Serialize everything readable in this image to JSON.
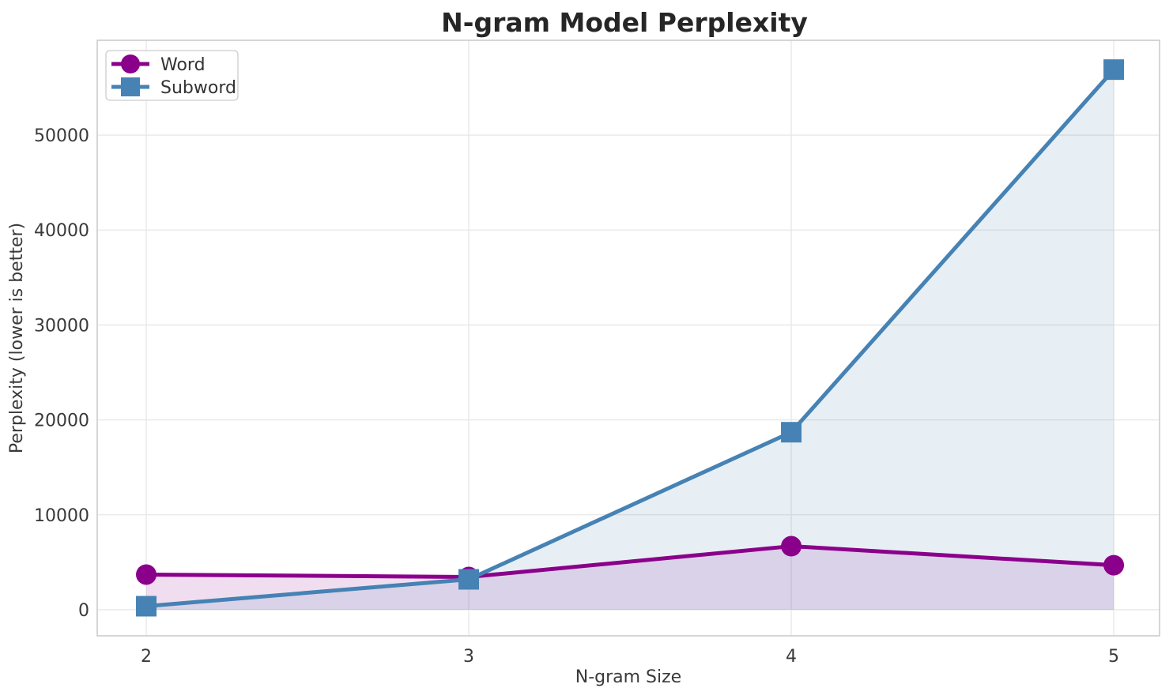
{
  "chart_data": {
    "type": "line",
    "title": "N-gram Model Perplexity",
    "xlabel": "N-gram Size",
    "ylabel": "Perplexity (lower is better)",
    "x": [
      2,
      3,
      4,
      5
    ],
    "xticks": [
      2,
      3,
      4,
      5
    ],
    "yticks": [
      0,
      10000,
      20000,
      30000,
      40000,
      50000
    ],
    "xlim": [
      1.848,
      5.142
    ],
    "ylim": [
      -2750,
      59990
    ],
    "grid": true,
    "legend_position": "upper left",
    "fill_to_zero": true,
    "fill_opacity": 0.13,
    "line_width": 5,
    "series": [
      {
        "name": "Word",
        "color": "#8B008B",
        "marker": "circle",
        "values": [
          3700,
          3450,
          6690,
          4690
        ]
      },
      {
        "name": "Subword",
        "color": "#4682B4",
        "marker": "square",
        "values": [
          370,
          3200,
          18700,
          56900
        ]
      }
    ],
    "colors": {
      "background": "#ffffff",
      "grid": "#e7e7e7",
      "spine": "#c9c9c9",
      "title": "#262626",
      "tick": "#3a3a3a",
      "legend_border": "#cccccc",
      "legend_text": "#333333"
    }
  }
}
